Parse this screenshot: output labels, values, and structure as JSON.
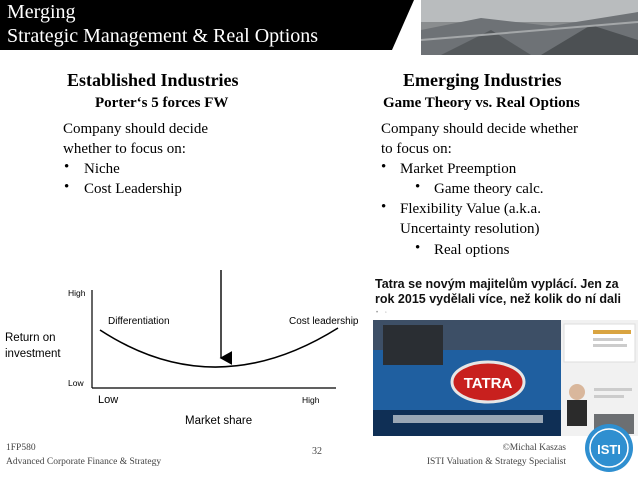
{
  "title": {
    "line1": "Merging",
    "line2": "Strategic Management & Real Options"
  },
  "left": {
    "heading": "Established Industries",
    "subheading": "Porter‘s 5 forces FW",
    "text_line1": "Company should decide",
    "text_line2": "whether to focus on:",
    "bullets": [
      "Niche",
      "Cost Leadership"
    ]
  },
  "right": {
    "heading": "Emerging Industries",
    "subheading": "Game Theory vs. Real Options",
    "text_line1": "Company should decide whether",
    "text_line2": "to focus on:",
    "bullet1": "Market Preemption",
    "sub1": "Game theory calc.",
    "bullet2_line1": "Flexibility Value (a.k.a.",
    "bullet2_line2": "Uncertainty resolution)",
    "sub2": "Real options"
  },
  "chart": {
    "y_high": "High",
    "y_low": "Low",
    "y_label_line1": "Return on",
    "y_label_line2": "investment",
    "x_low": "Low",
    "x_high": "High",
    "x_label": "Market share",
    "label_left": "Differentiation",
    "label_right": "Cost leadership"
  },
  "news": {
    "headline": "Tatra se novým majitelům vyplácí. Jen za rok 2015 vydělali více, než kolik do ní dali",
    "meta": "•    ◦",
    "logo_text": "TATRA"
  },
  "footer": {
    "course_code": "1FP580",
    "course_name": "Advanced Corporate Finance & Strategy",
    "page": "32",
    "author": "©Michal Kaszas",
    "author_title": "ISTI Valuation & Strategy Specialist",
    "logo_text": "ISTI"
  },
  "colors": {
    "title_bg": "#000000",
    "title_fg": "#ffffff",
    "truck_blue": "#1f5fa0",
    "logo_red": "#c8201e",
    "isti_blue": "#2f8fd0"
  }
}
